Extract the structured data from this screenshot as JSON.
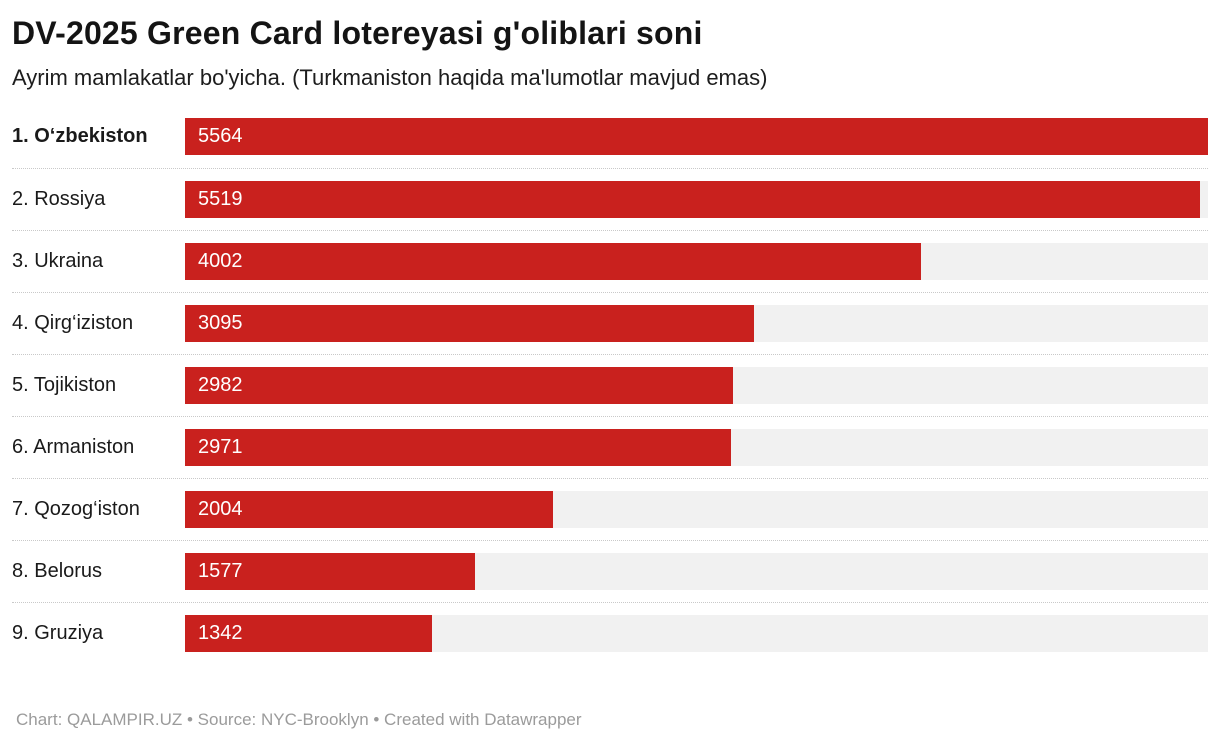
{
  "header": {
    "title": "DV-2025 Green Card lotereyasi g'oliblari soni",
    "subtitle": "Ayrim mamlakatlar bo'yicha. (Turkmaniston haqida ma'lumotlar mavjud emas)"
  },
  "chart_data": {
    "type": "bar",
    "orientation": "horizontal",
    "title": "DV-2025 Green Card lotereyasi g'oliblari soni",
    "subtitle": "Ayrim mamlakatlar bo'yicha. (Turkmaniston haqida ma'lumotlar mavjud emas)",
    "categories": [
      "1. O‘zbekiston",
      "2. Rossiya",
      "3. Ukraina",
      "4. Qirg‘iziston",
      "5. Tojikiston",
      "6. Armaniston",
      "7. Qozog‘iston",
      "8. Belorus",
      "9. Gruziya"
    ],
    "values": [
      5564,
      5519,
      4002,
      3095,
      2982,
      2971,
      2004,
      1577,
      1342
    ],
    "value_labels": [
      "5564",
      "5519",
      "4002",
      "3095",
      "2982",
      "2971",
      "2004",
      "1577",
      "1342"
    ],
    "xlim": [
      0,
      5564
    ],
    "bar_color": "#c9211e",
    "track_color": "#f1f1f1",
    "emphasized_index": 0,
    "grid": false,
    "legend": false,
    "value_label_position": "inside-left",
    "value_label_color": "#ffffff"
  },
  "footer": {
    "attribution": "Chart: QALAMPIR.UZ • Source: NYC-Brooklyn • Created with Datawrapper"
  }
}
